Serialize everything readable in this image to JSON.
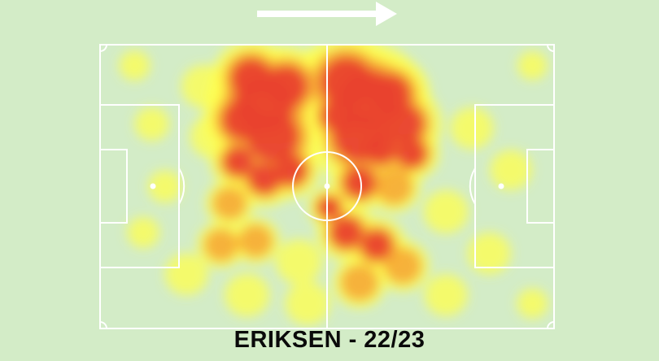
{
  "title": "ERIKSEN - 22/23",
  "direction": "attacking-right",
  "colors": {
    "background": "#d3ecc7",
    "pitch_lines": "#ffffff",
    "heat_low": "#ffff4d",
    "heat_mid": "#f7a534",
    "heat_high": "#e9432f",
    "arrow": "#ffffff"
  },
  "icons": {
    "direction": "right-arrow-icon"
  },
  "heatmap": {
    "pitch_length": 105,
    "pitch_width": 68,
    "hotspots": [
      [
        38,
        14,
        1.0,
        7
      ],
      [
        40,
        22,
        1.0,
        6
      ],
      [
        35,
        8,
        0.9,
        5
      ],
      [
        43,
        10,
        1.0,
        5
      ],
      [
        33,
        18,
        0.9,
        5
      ],
      [
        44,
        30,
        0.8,
        4
      ],
      [
        32,
        28,
        0.7,
        4
      ],
      [
        38,
        32,
        0.8,
        4
      ],
      [
        57,
        9,
        1.0,
        6
      ],
      [
        62,
        13,
        1.0,
        7
      ],
      [
        60,
        22,
        1.0,
        6
      ],
      [
        67,
        12,
        0.95,
        5
      ],
      [
        70,
        19,
        0.9,
        5
      ],
      [
        55,
        17,
        0.9,
        4
      ],
      [
        65,
        25,
        0.8,
        4
      ],
      [
        72,
        26,
        0.7,
        4
      ],
      [
        60,
        33,
        0.8,
        4
      ],
      [
        68,
        34,
        0.6,
        4
      ],
      [
        57,
        45,
        0.8,
        4
      ],
      [
        64,
        48,
        0.75,
        4
      ],
      [
        70,
        53,
        0.6,
        4
      ],
      [
        60,
        57,
        0.6,
        4
      ],
      [
        53,
        39,
        0.7,
        3
      ],
      [
        30,
        38,
        0.45,
        4
      ],
      [
        28,
        48,
        0.45,
        4
      ],
      [
        36,
        47,
        0.45,
        4
      ],
      [
        26,
        22,
        0.35,
        4
      ],
      [
        24,
        10,
        0.35,
        4
      ],
      [
        12,
        19,
        0.4,
        3
      ],
      [
        15,
        34,
        0.35,
        3
      ],
      [
        10,
        45,
        0.3,
        3
      ],
      [
        20,
        55,
        0.3,
        4
      ],
      [
        80,
        40,
        0.35,
        4
      ],
      [
        86,
        20,
        0.3,
        4
      ],
      [
        90,
        50,
        0.3,
        4
      ],
      [
        95,
        30,
        0.25,
        4
      ],
      [
        46,
        52,
        0.4,
        4
      ],
      [
        48,
        62,
        0.35,
        4
      ],
      [
        34,
        60,
        0.35,
        4
      ],
      [
        80,
        60,
        0.3,
        4
      ],
      [
        100,
        62,
        0.25,
        3
      ],
      [
        100,
        5,
        0.2,
        3
      ],
      [
        8,
        5,
        0.25,
        3
      ],
      [
        50,
        5,
        0.35,
        3
      ]
    ]
  }
}
